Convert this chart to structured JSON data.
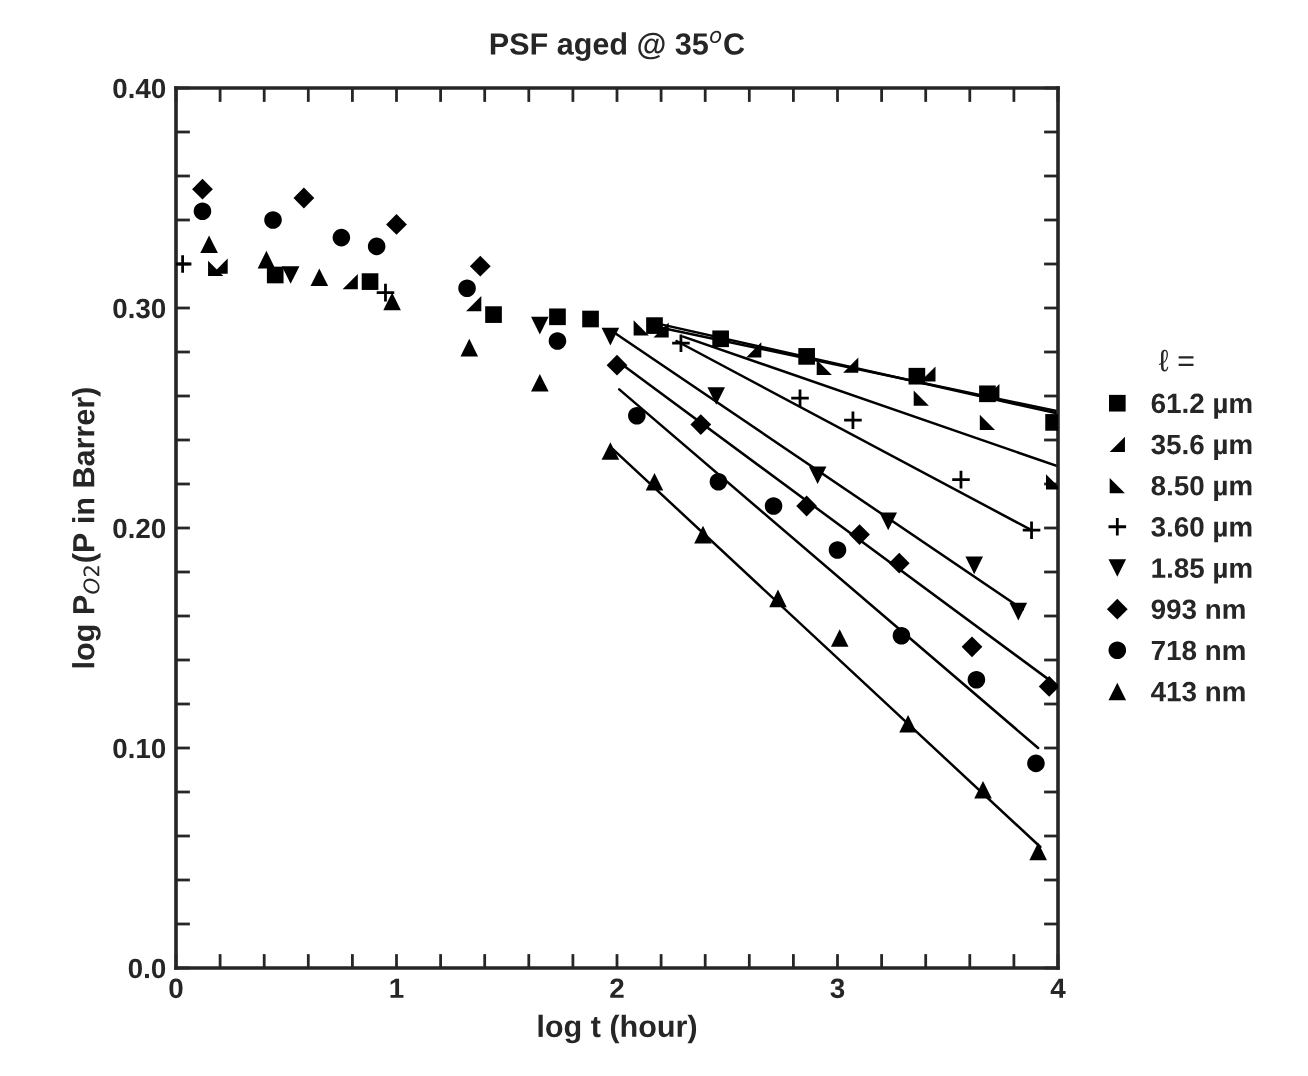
{
  "chart_data": {
    "type": "scatter",
    "title": "PSF aged @ 35$^{o}$C",
    "xlabel": "log t (hour)",
    "ylabel": "log P$_{O2}$(P in Barrer)",
    "legend_title": "ℓ =",
    "legend": "right",
    "grid": false,
    "xlim": [
      0,
      4
    ],
    "ylim": [
      0,
      0.4
    ],
    "xticks": [
      0,
      {
        "value": 0.2,
        "label": null
      },
      {
        "value": 0.4,
        "label": null
      },
      {
        "value": 0.6,
        "label": null
      },
      {
        "value": 0.8,
        "label": null
      },
      1,
      {
        "value": 1.2,
        "label": null
      },
      {
        "value": 1.4,
        "label": null
      },
      {
        "value": 1.6,
        "label": null
      },
      {
        "value": 1.8,
        "label": null
      },
      2,
      {
        "value": 2.2,
        "label": null
      },
      {
        "value": 2.4,
        "label": null
      },
      {
        "value": 2.6,
        "label": null
      },
      {
        "value": 2.8,
        "label": null
      },
      3,
      {
        "value": 3.2,
        "label": null
      },
      {
        "value": 3.4,
        "label": null
      },
      {
        "value": 3.6,
        "label": null
      },
      {
        "value": 3.8,
        "label": null
      },
      4
    ],
    "yticks": [
      {
        "value": 0,
        "label": "0.0"
      },
      {
        "value": 0.02,
        "label": null
      },
      {
        "value": 0.04,
        "label": null
      },
      {
        "value": 0.06,
        "label": null
      },
      {
        "value": 0.08,
        "label": null
      },
      {
        "value": 0.1,
        "label": "0.10"
      },
      {
        "value": 0.12,
        "label": null
      },
      {
        "value": 0.14,
        "label": null
      },
      {
        "value": 0.16,
        "label": null
      },
      {
        "value": 0.18,
        "label": null
      },
      {
        "value": 0.2,
        "label": "0.20"
      },
      {
        "value": 0.22,
        "label": null
      },
      {
        "value": 0.24,
        "label": null
      },
      {
        "value": 0.26,
        "label": null
      },
      {
        "value": 0.28,
        "label": null
      },
      {
        "value": 0.3,
        "label": "0.30"
      },
      {
        "value": 0.32,
        "label": null
      },
      {
        "value": 0.34,
        "label": null
      },
      {
        "value": 0.36,
        "label": null
      },
      {
        "value": 0.38,
        "label": null
      },
      {
        "value": 0.4,
        "label": "0.40"
      }
    ],
    "series": [
      {
        "name": "61.2 µm",
        "marker": "square",
        "color": "#000000",
        "x": [
          0.45,
          0.88,
          1.44,
          1.73,
          1.88,
          2.17,
          2.47,
          2.86,
          3.36,
          3.68,
          3.98
        ],
        "values": [
          0.315,
          0.312,
          0.297,
          0.296,
          0.295,
          0.292,
          0.286,
          0.278,
          0.269,
          0.261,
          0.248
        ]
      },
      {
        "name": "35.6 µm",
        "marker": "triangle",
        "color": "#000000",
        "x": [
          0.2,
          0.79,
          1.35,
          2.2,
          2.62,
          3.06,
          3.41,
          3.7
        ],
        "values": [
          0.319,
          0.312,
          0.302,
          0.29,
          0.281,
          0.274,
          0.27,
          0.262
        ]
      },
      {
        "name": "8.50 µm",
        "marker": "triangle",
        "color": "#000000",
        "x": [
          0.18,
          2.11,
          2.94,
          3.38,
          3.68,
          3.98
        ],
        "values": [
          0.318,
          0.291,
          0.273,
          0.259,
          0.248,
          0.221
        ]
      },
      {
        "name": "3.60 µm",
        "marker": "cross",
        "color": "#000000",
        "x": [
          0.03,
          0.95,
          2.29,
          2.83,
          3.07,
          3.56,
          3.88
        ],
        "values": [
          0.32,
          0.307,
          0.284,
          0.259,
          0.249,
          0.222,
          0.199
        ]
      },
      {
        "name": "1.85 µm",
        "marker": "triangle",
        "color": "#000000",
        "x": [
          0.52,
          1.65,
          1.97,
          2.45,
          2.91,
          3.23,
          3.62,
          3.82
        ],
        "values": [
          0.315,
          0.292,
          0.287,
          0.26,
          0.224,
          0.203,
          0.183,
          0.162
        ]
      },
      {
        "name": "993 nm",
        "marker": "diamond",
        "color": "#000000",
        "x": [
          0.12,
          0.58,
          1.0,
          1.38,
          2.0,
          2.38,
          2.86,
          3.1,
          3.28,
          3.61,
          3.96
        ],
        "values": [
          0.354,
          0.35,
          0.338,
          0.319,
          0.274,
          0.247,
          0.21,
          0.197,
          0.184,
          0.146,
          0.128
        ]
      },
      {
        "name": "718 nm",
        "marker": "circle",
        "color": "#000000",
        "x": [
          0.12,
          0.44,
          0.75,
          0.91,
          1.32,
          1.73,
          2.09,
          2.46,
          2.71,
          3.0,
          3.29,
          3.63,
          3.9
        ],
        "values": [
          0.344,
          0.34,
          0.332,
          0.328,
          0.309,
          0.285,
          0.251,
          0.221,
          0.21,
          0.19,
          0.151,
          0.131,
          0.093
        ]
      },
      {
        "name": "413 nm",
        "marker": "triangle",
        "color": "#000000",
        "x": [
          0.15,
          0.41,
          0.65,
          0.98,
          1.33,
          1.65,
          1.97,
          2.17,
          2.39,
          2.73,
          3.01,
          3.32,
          3.66,
          3.91
        ],
        "values": [
          0.329,
          0.322,
          0.314,
          0.303,
          0.282,
          0.266,
          0.235,
          0.221,
          0.197,
          0.168,
          0.15,
          0.111,
          0.081,
          0.053
        ]
      },
      {
        "type": "line",
        "color": "#000000",
        "x": [
          2.18,
          4.0
        ],
        "values": [
          0.293,
          0.252
        ]
      },
      {
        "type": "line",
        "color": "#000000",
        "x": [
          2.2,
          4.0
        ],
        "values": [
          0.291,
          0.253
        ]
      },
      {
        "type": "line",
        "color": "#000000",
        "x": [
          2.3,
          4.0
        ],
        "values": [
          0.287,
          0.228
        ]
      },
      {
        "type": "line",
        "color": "#000000",
        "x": [
          2.27,
          3.88
        ],
        "values": [
          0.285,
          0.199
        ]
      },
      {
        "type": "line",
        "color": "#000000",
        "x": [
          1.97,
          3.84
        ],
        "values": [
          0.29,
          0.163
        ]
      },
      {
        "type": "line",
        "color": "#000000",
        "x": [
          2.0,
          4.0
        ],
        "values": [
          0.276,
          0.128
        ]
      },
      {
        "type": "line",
        "color": "#000000",
        "x": [
          2.01,
          3.91
        ],
        "values": [
          0.263,
          0.1
        ]
      },
      {
        "type": "line",
        "color": "#000000",
        "x": [
          1.98,
          3.92
        ],
        "values": [
          0.236,
          0.055
        ]
      }
    ]
  }
}
